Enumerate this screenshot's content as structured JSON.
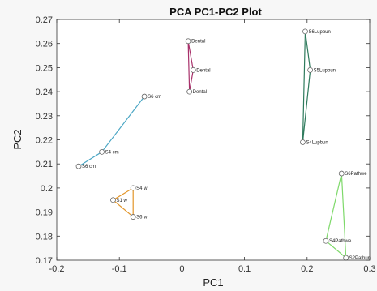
{
  "chart_data": {
    "type": "scatter",
    "title": "PCA PC1-PC2 Plot",
    "xlabel": "PC1",
    "ylabel": "PC2",
    "xlim": [
      -0.2,
      0.3
    ],
    "ylim": [
      0.17,
      0.27
    ],
    "xticks": [
      -0.2,
      -0.1,
      0,
      0.1,
      0.2,
      0.3
    ],
    "xtick_labels": [
      "-0.2",
      "-0.1",
      "0",
      "0.1",
      "0.2",
      "0.3"
    ],
    "yticks": [
      0.17,
      0.18,
      0.19,
      0.2,
      0.21,
      0.22,
      0.23,
      0.24,
      0.25,
      0.26,
      0.27
    ],
    "ytick_labels": [
      "0.17",
      "0.18",
      "0.19",
      "0.2",
      "0.21",
      "0.22",
      "0.23",
      "0.24",
      "0.25",
      "0.26",
      "0.27"
    ],
    "grid": false,
    "groups": [
      {
        "color": "#4aa6c4",
        "closed": false,
        "points": [
          {
            "x": -0.165,
            "y": 0.209,
            "label": "S6 cm"
          },
          {
            "x": -0.128,
            "y": 0.215,
            "label": "S4 cm"
          },
          {
            "x": -0.06,
            "y": 0.238,
            "label": "S6 cm"
          }
        ]
      },
      {
        "color": "#e3962a",
        "closed": true,
        "points": [
          {
            "x": -0.11,
            "y": 0.195,
            "label": "S1 w"
          },
          {
            "x": -0.078,
            "y": 0.2,
            "label": "S4 w"
          },
          {
            "x": -0.078,
            "y": 0.188,
            "label": "S6 w"
          }
        ]
      },
      {
        "color": "#a8306a",
        "closed": true,
        "points": [
          {
            "x": 0.01,
            "y": 0.261,
            "label": "Dental"
          },
          {
            "x": 0.018,
            "y": 0.249,
            "label": "Dental"
          },
          {
            "x": 0.012,
            "y": 0.24,
            "label": "Dental"
          }
        ]
      },
      {
        "color": "#2e7a5c",
        "closed": true,
        "points": [
          {
            "x": 0.197,
            "y": 0.265,
            "label": "S6Lupbun"
          },
          {
            "x": 0.205,
            "y": 0.249,
            "label": "S5Lupbun"
          },
          {
            "x": 0.193,
            "y": 0.219,
            "label": "S4Lupbun"
          }
        ]
      },
      {
        "color": "#7ed96a",
        "closed": true,
        "points": [
          {
            "x": 0.255,
            "y": 0.206,
            "label": "S6Pathwe"
          },
          {
            "x": 0.23,
            "y": 0.178,
            "label": "S4Pathwe"
          },
          {
            "x": 0.262,
            "y": 0.171,
            "label": "S2Pathun"
          }
        ]
      }
    ]
  }
}
